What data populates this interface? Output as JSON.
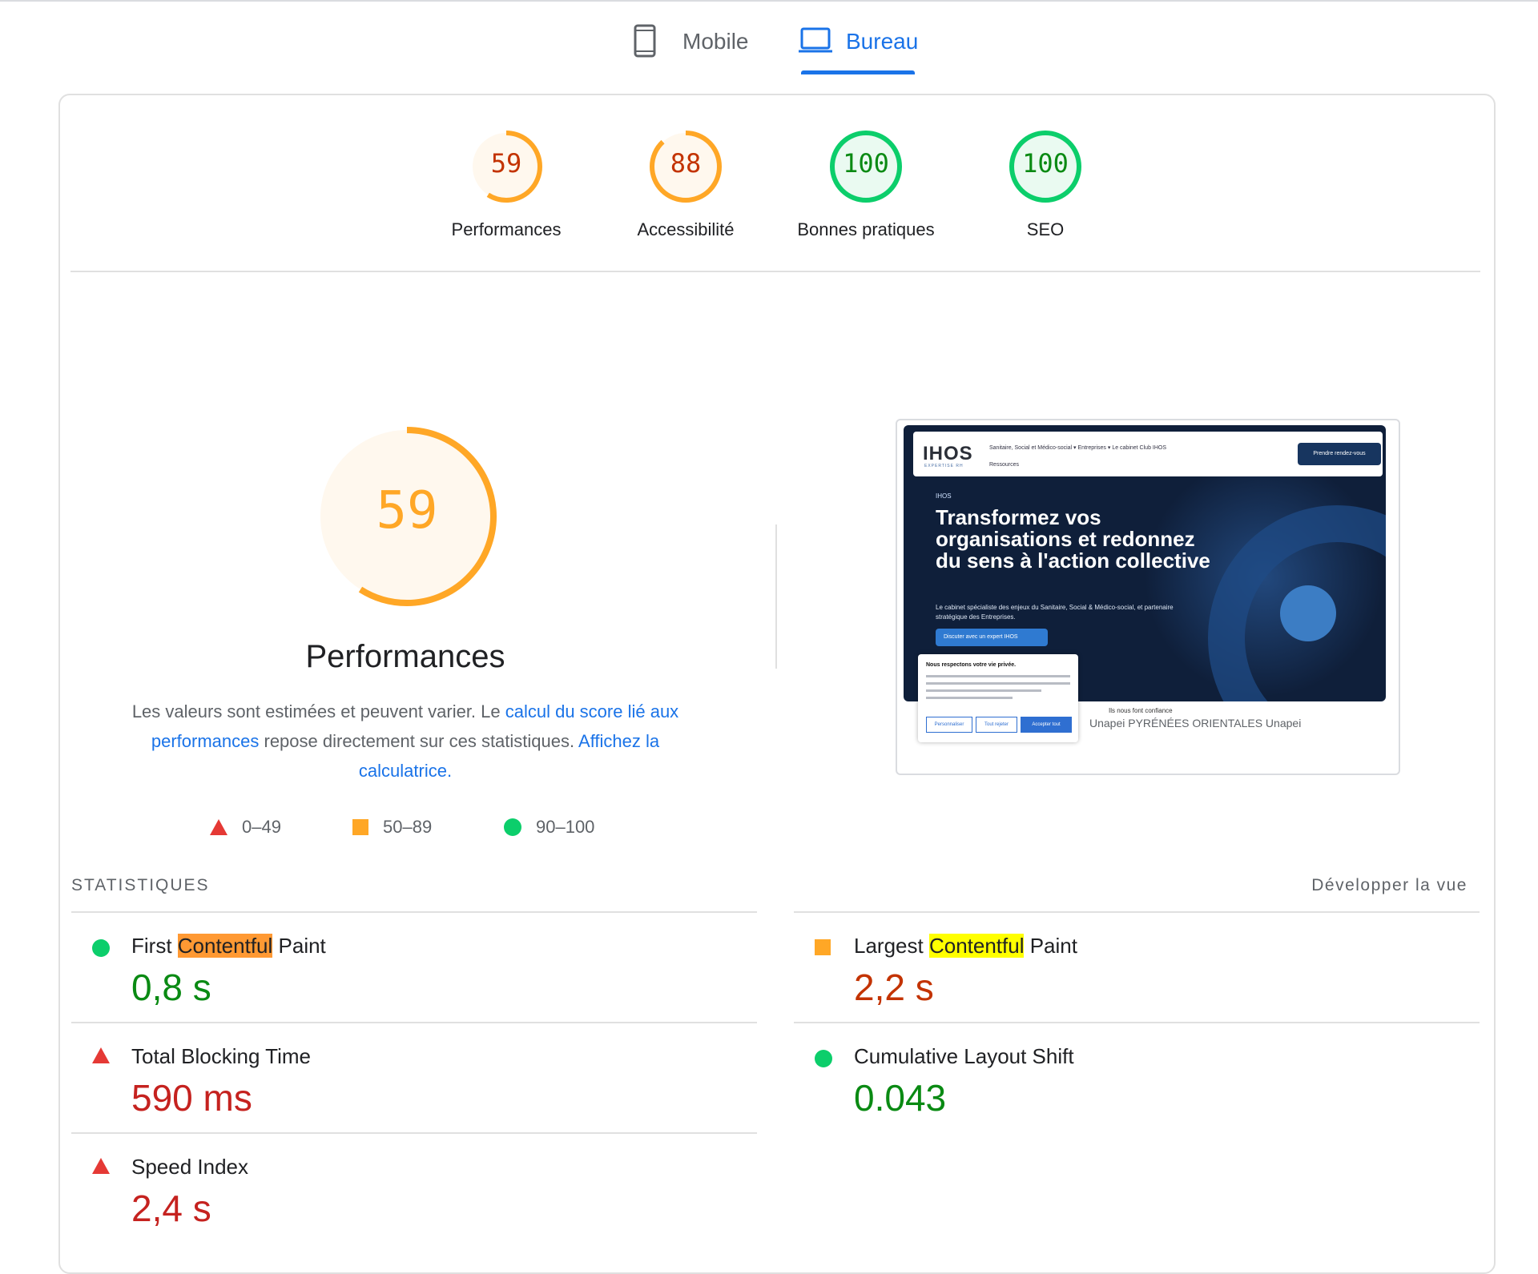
{
  "tabs": [
    {
      "label": "Mobile",
      "active": false
    },
    {
      "label": "Bureau",
      "active": true
    }
  ],
  "colors": {
    "accent": "#1a73e8",
    "pass": "#0cce6b",
    "average": "#ffa400",
    "fail": "#ff4e42"
  },
  "scores": [
    {
      "value": "59",
      "label": "Performances",
      "status": "average"
    },
    {
      "value": "88",
      "label": "Accessibilité",
      "status": "average"
    },
    {
      "value": "100",
      "label": "Bonnes pratiques",
      "status": "pass"
    },
    {
      "value": "100",
      "label": "SEO",
      "status": "pass"
    }
  ],
  "main": {
    "score": "59",
    "title": "Performances",
    "desc_pre": "Les valeurs sont estimées et peuvent varier. Le ",
    "desc_link1": "calcul du score lié aux performances",
    "desc_mid": " repose directement sur ces statistiques. ",
    "desc_link2": "Affichez la calculatrice."
  },
  "legend": [
    {
      "shape": "triangle",
      "range": "0–49"
    },
    {
      "shape": "square",
      "range": "50–89"
    },
    {
      "shape": "circle",
      "range": "90–100"
    }
  ],
  "thumbnail": {
    "logo": "IHOS",
    "logo_sub": "EXPERTISE RH",
    "nav_links": "Sanitaire, Social et Médico-social ▾     Entreprises ▾     Le cabinet     Club IHOS",
    "nav_links2": "Ressources",
    "cta": "Prendre rendez-vous",
    "tag": "IHOS",
    "headline": "Transformez vos organisations et redonnez du sens à l'action collective",
    "sub": "Le cabinet spécialiste des enjeux du Sanitaire, Social & Médico-social, et partenaire stratégique des Entreprises.",
    "button": "Discuter avec un expert IHOS",
    "cookie_title": "Nous respectons votre vie privée.",
    "cookie_btn1": "Personnaliser",
    "cookie_btn2": "Tout rejeter",
    "cookie_btn3": "Accepter tout",
    "confiance": "Ils nous font confiance",
    "partner_logos": "Unapei     PYRÉNÉES ORIENTALES     Unapei"
  },
  "statistics": {
    "title": "STATISTIQUES",
    "expand": "Développer la vue",
    "metrics": [
      {
        "pre": "First ",
        "hl": "Contentful",
        "post": " Paint",
        "value": "0,8 s",
        "status": "pass"
      },
      {
        "pre": "Largest ",
        "hl": "Contentful",
        "post": " Paint",
        "value": "2,2 s",
        "status": "average"
      },
      {
        "pre": "Total Blocking Time",
        "hl": "",
        "post": "",
        "value": "590 ms",
        "status": "fail"
      },
      {
        "pre": "Cumulative Layout Shift",
        "hl": "",
        "post": "",
        "value": "0.043",
        "status": "pass"
      },
      {
        "pre": "Speed Index",
        "hl": "",
        "post": "",
        "value": "2,4 s",
        "status": "fail"
      }
    ]
  }
}
